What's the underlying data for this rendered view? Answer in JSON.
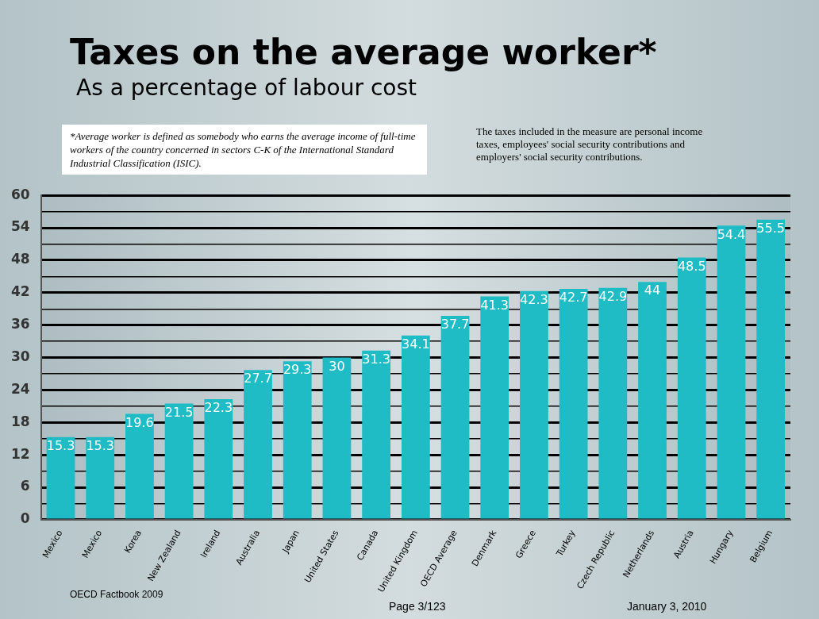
{
  "chart_data": {
    "type": "bar",
    "title": "Taxes on the average worker*",
    "subtitle": "As a percentage of labour cost",
    "categories": [
      "Mexico",
      "Mexico",
      "Korea",
      "New Zealand",
      "Ireland",
      "Australia",
      "Japan",
      "United States",
      "Canada",
      "United Kingdom",
      "OECD Average",
      "Denmark",
      "Greece",
      "Turkey",
      "Czech Republic",
      "Netherlands",
      "Austria",
      "Hungary",
      "Belgium"
    ],
    "values": [
      15.3,
      15.3,
      19.6,
      21.5,
      22.3,
      27.7,
      29.3,
      30,
      31.3,
      34.1,
      37.7,
      41.3,
      42.3,
      42.7,
      42.9,
      44,
      48.5,
      54.4,
      55.5
    ],
    "color": "#1fbcc6",
    "ylim": [
      0,
      60
    ],
    "yticks": [
      0,
      {
        "value": 3,
        "label": null
      },
      6,
      {
        "value": 9,
        "label": null
      },
      12,
      {
        "value": 15,
        "label": null
      },
      18,
      {
        "value": 21,
        "label": null
      },
      24,
      {
        "value": 27,
        "label": null
      },
      30,
      {
        "value": 33,
        "label": null
      },
      36,
      {
        "value": 39,
        "label": null
      },
      42,
      {
        "value": 45,
        "label": null
      },
      48,
      {
        "value": 51,
        "label": null
      },
      54,
      {
        "value": 57,
        "label": null
      },
      60
    ],
    "grid": "y",
    "data_labels": true,
    "annotations": [
      "*Average worker is defined as somebody who earns the average income of full-time workers of the country concerned in sectors C-K of the International Standard Industrial Classification (ISIC).",
      "The taxes included in the measure are personal income taxes, employees' social security contributions and employers' social security contributions.",
      "OECD Factbook 2009",
      "Page 3/123",
      "January 3, 2010"
    ]
  }
}
